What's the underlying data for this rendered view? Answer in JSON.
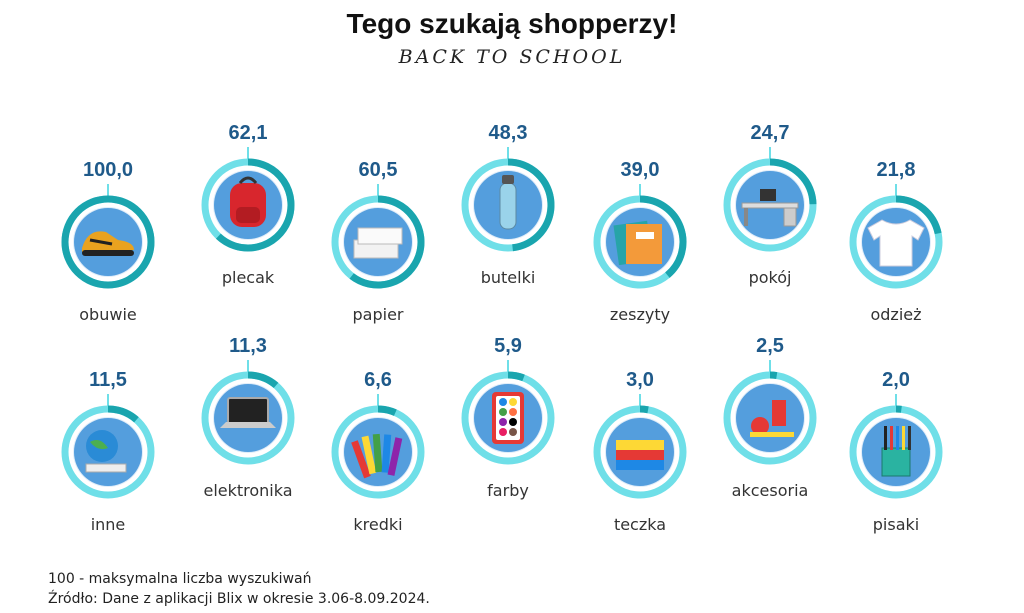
{
  "title": "Tego szukają shopperzy!",
  "subtitle": "BACK TO SCHOOL",
  "footnote": "100 - maksymalna liczba wyszukiwań",
  "source": "Źródło: Dane z aplikacji Blix w okresie 3.06-8.09.2024.",
  "colors": {
    "ring_track": "#6fdfe8",
    "ring_fill": "#1aa5ae",
    "value_text": "#1f5a8a"
  },
  "chart_data": {
    "type": "donut-grid",
    "max": 100,
    "categories": [
      "obuwie",
      "plecak",
      "papier",
      "butelki",
      "zeszyty",
      "pokój",
      "odzież",
      "inne",
      "elektronika",
      "kredki",
      "farby",
      "teczka",
      "akcesoria",
      "pisaki"
    ],
    "values": [
      100.0,
      62.1,
      60.5,
      48.3,
      39.0,
      24.7,
      21.8,
      11.5,
      11.3,
      6.6,
      5.9,
      3.0,
      2.5,
      2.0
    ],
    "value_labels": [
      "100,0",
      "62,1",
      "60,5",
      "48,3",
      "39,0",
      "24,7",
      "21,8",
      "11,5",
      "11,3",
      "6,6",
      "5,9",
      "3,0",
      "2,5",
      "2,0"
    ],
    "icons": [
      "shoe-icon",
      "backpack-icon",
      "paper-stack-icon",
      "bottle-icon",
      "notebooks-icon",
      "desk-icon",
      "tshirt-icon",
      "globe-icon",
      "laptop-icon",
      "crayons-icon",
      "paints-icon",
      "folders-icon",
      "accessories-icon",
      "pens-cup-icon"
    ]
  }
}
